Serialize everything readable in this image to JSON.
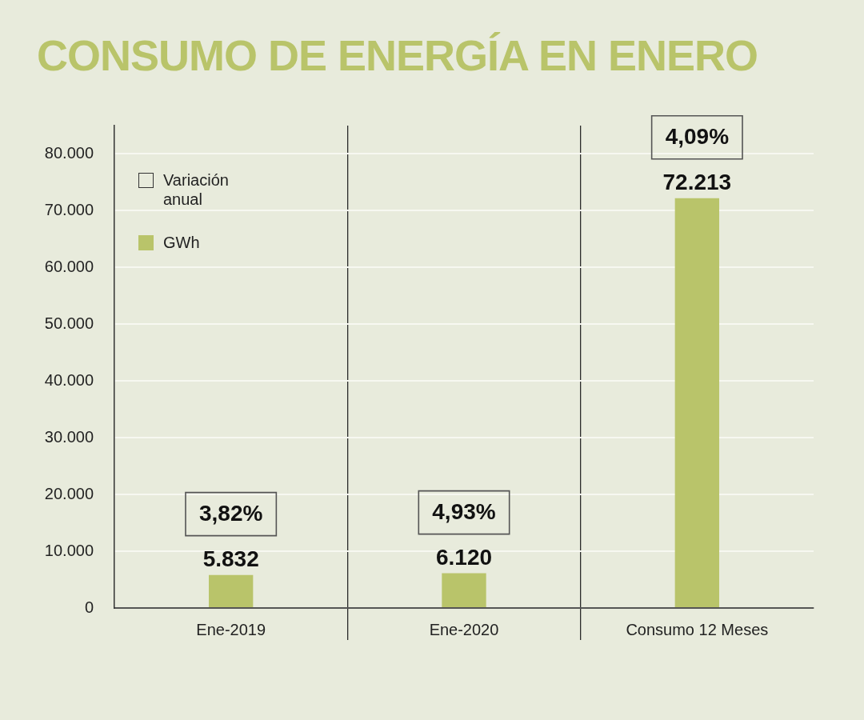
{
  "chart_data": {
    "type": "bar",
    "title": "CONSUMO DE ENERGÍA EN ENERO",
    "categories": [
      "Ene-2019",
      "Ene-2020",
      "Consumo 12 Meses"
    ],
    "series": [
      {
        "name": "GWh",
        "color": "#b9c46a",
        "values": [
          5832,
          6120,
          72213
        ],
        "value_labels": [
          "5.832",
          "6.120",
          "72.213"
        ]
      }
    ],
    "ylim": [
      0,
      85000
    ],
    "yticks": [
      0,
      {
        "value": 10000,
        "label": "10.000"
      },
      {
        "value": 20000,
        "label": "20.000"
      },
      {
        "value": 30000,
        "label": "30.000"
      },
      {
        "value": 40000,
        "label": "40.000"
      },
      {
        "value": 50000,
        "label": "50.000"
      },
      {
        "value": 60000,
        "label": "60.000"
      },
      {
        "value": 70000,
        "label": "70.000"
      },
      {
        "value": 80000,
        "label": "80.000"
      }
    ],
    "grid": true,
    "legend": "top left",
    "annotations": [
      "Variación anual",
      {
        "text": "3,82%",
        "x": "Ene-2019",
        "y": 5832
      },
      {
        "text": "4,93%",
        "x": "Ene-2020",
        "y": 6120
      },
      {
        "text": "4,09%",
        "x": "Consumo 12 Meses",
        "y": 72213
      }
    ]
  }
}
